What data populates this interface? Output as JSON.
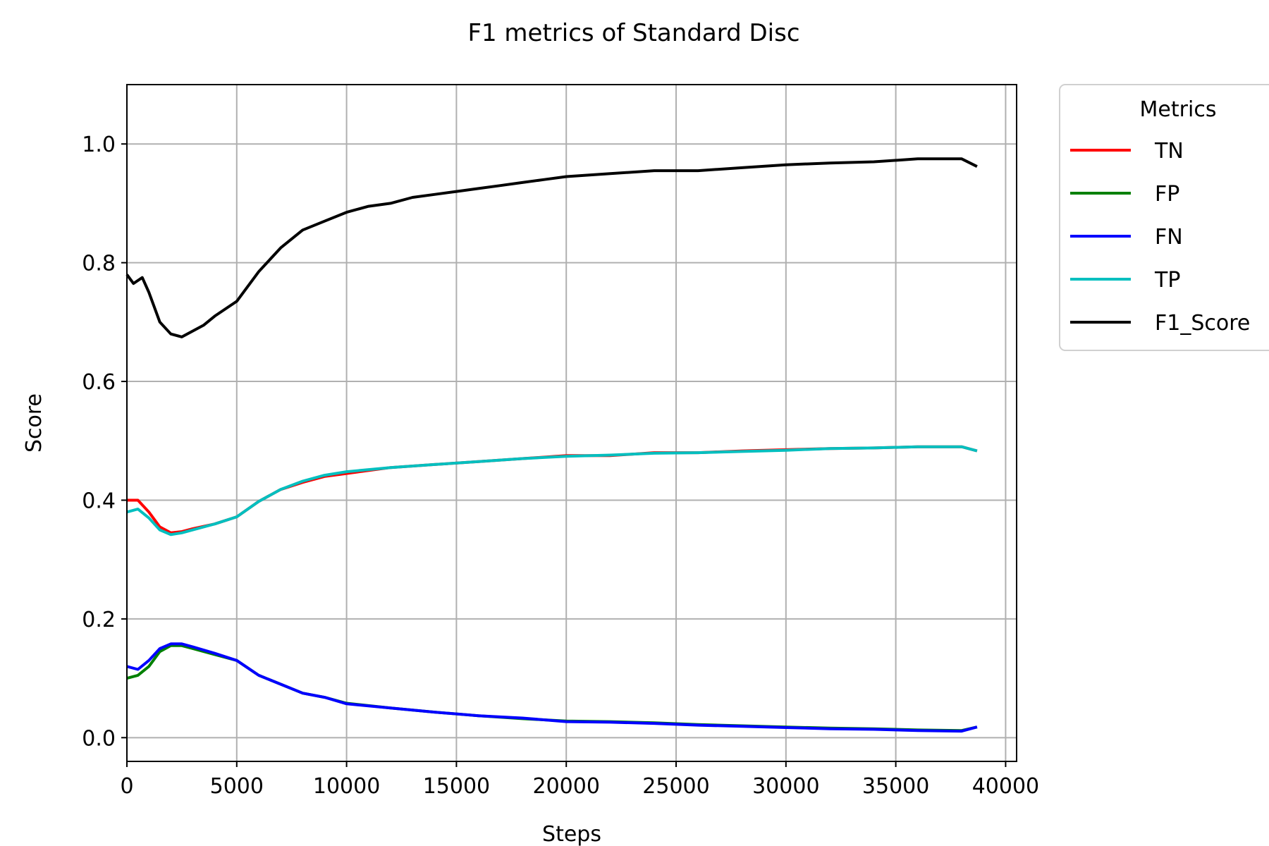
{
  "chart_data": {
    "type": "line",
    "title": "F1 metrics of Standard Disc",
    "xlabel": "Steps",
    "ylabel": "Score",
    "xlim": [
      0,
      40500
    ],
    "ylim": [
      -0.04,
      1.1
    ],
    "xticks": [
      0,
      5000,
      10000,
      15000,
      20000,
      25000,
      30000,
      35000,
      40000
    ],
    "xtick_labels": [
      "0",
      "5000",
      "10000",
      "15000",
      "20000",
      "25000",
      "30000",
      "35000",
      "40000"
    ],
    "yticks": [
      0.0,
      0.2,
      0.4,
      0.6,
      0.8,
      1.0
    ],
    "ytick_labels": [
      "0.0",
      "0.2",
      "0.4",
      "0.6",
      "0.8",
      "1.0"
    ],
    "grid": true,
    "legend": {
      "title": "Metrics",
      "placement": "outside-right-top"
    },
    "series": [
      {
        "name": "TN",
        "color": "#ff0000",
        "x": [
          0,
          500,
          1000,
          1500,
          2000,
          2500,
          3000,
          4000,
          5000,
          6000,
          7000,
          8000,
          9000,
          10000,
          12000,
          14000,
          16000,
          18000,
          20000,
          22000,
          24000,
          26000,
          28000,
          30000,
          32000,
          34000,
          36000,
          38000,
          38700
        ],
        "y": [
          0.4,
          0.4,
          0.38,
          0.355,
          0.345,
          0.347,
          0.352,
          0.36,
          0.372,
          0.398,
          0.418,
          0.43,
          0.44,
          0.445,
          0.455,
          0.46,
          0.465,
          0.47,
          0.475,
          0.475,
          0.48,
          0.48,
          0.483,
          0.485,
          0.487,
          0.488,
          0.49,
          0.49,
          0.483
        ]
      },
      {
        "name": "FP",
        "color": "#008000",
        "x": [
          0,
          500,
          1000,
          1500,
          2000,
          2500,
          3000,
          4000,
          5000,
          6000,
          7000,
          8000,
          9000,
          10000,
          12000,
          14000,
          16000,
          18000,
          20000,
          22000,
          24000,
          26000,
          28000,
          30000,
          32000,
          34000,
          36000,
          38000,
          38700
        ],
        "y": [
          0.1,
          0.105,
          0.12,
          0.145,
          0.155,
          0.155,
          0.15,
          0.14,
          0.13,
          0.105,
          0.09,
          0.075,
          0.068,
          0.058,
          0.05,
          0.043,
          0.037,
          0.032,
          0.028,
          0.027,
          0.025,
          0.022,
          0.02,
          0.018,
          0.016,
          0.015,
          0.013,
          0.012,
          0.018
        ]
      },
      {
        "name": "FN",
        "color": "#0000ff",
        "x": [
          0,
          500,
          1000,
          1500,
          2000,
          2500,
          3000,
          4000,
          5000,
          6000,
          7000,
          8000,
          9000,
          10000,
          12000,
          14000,
          16000,
          18000,
          20000,
          22000,
          24000,
          26000,
          28000,
          30000,
          32000,
          34000,
          36000,
          38000,
          38700
        ],
        "y": [
          0.12,
          0.115,
          0.13,
          0.15,
          0.158,
          0.158,
          0.153,
          0.142,
          0.13,
          0.105,
          0.09,
          0.075,
          0.068,
          0.057,
          0.05,
          0.043,
          0.037,
          0.033,
          0.027,
          0.026,
          0.024,
          0.021,
          0.019,
          0.017,
          0.015,
          0.014,
          0.012,
          0.011,
          0.018
        ]
      },
      {
        "name": "TP",
        "color": "#00bfbf",
        "x": [
          0,
          500,
          1000,
          1500,
          2000,
          2500,
          3000,
          4000,
          5000,
          6000,
          7000,
          8000,
          9000,
          10000,
          12000,
          14000,
          16000,
          18000,
          20000,
          22000,
          24000,
          26000,
          28000,
          30000,
          32000,
          34000,
          36000,
          38000,
          38700
        ],
        "y": [
          0.38,
          0.385,
          0.37,
          0.35,
          0.342,
          0.345,
          0.35,
          0.36,
          0.372,
          0.398,
          0.418,
          0.432,
          0.442,
          0.448,
          0.455,
          0.46,
          0.465,
          0.47,
          0.474,
          0.476,
          0.479,
          0.48,
          0.482,
          0.484,
          0.487,
          0.488,
          0.49,
          0.49,
          0.483
        ]
      },
      {
        "name": "F1_Score",
        "color": "#000000",
        "x": [
          0,
          300,
          700,
          1000,
          1500,
          2000,
          2500,
          3000,
          3500,
          4000,
          5000,
          6000,
          7000,
          8000,
          9000,
          10000,
          11000,
          12000,
          13000,
          14000,
          15000,
          16000,
          17000,
          18000,
          19000,
          20000,
          22000,
          24000,
          26000,
          28000,
          30000,
          32000,
          34000,
          36000,
          38000,
          38700
        ],
        "y": [
          0.78,
          0.765,
          0.775,
          0.75,
          0.7,
          0.68,
          0.675,
          0.685,
          0.695,
          0.71,
          0.735,
          0.785,
          0.825,
          0.855,
          0.87,
          0.885,
          0.895,
          0.9,
          0.91,
          0.915,
          0.92,
          0.925,
          0.93,
          0.935,
          0.94,
          0.945,
          0.95,
          0.955,
          0.955,
          0.96,
          0.965,
          0.968,
          0.97,
          0.975,
          0.975,
          0.962
        ]
      }
    ]
  }
}
